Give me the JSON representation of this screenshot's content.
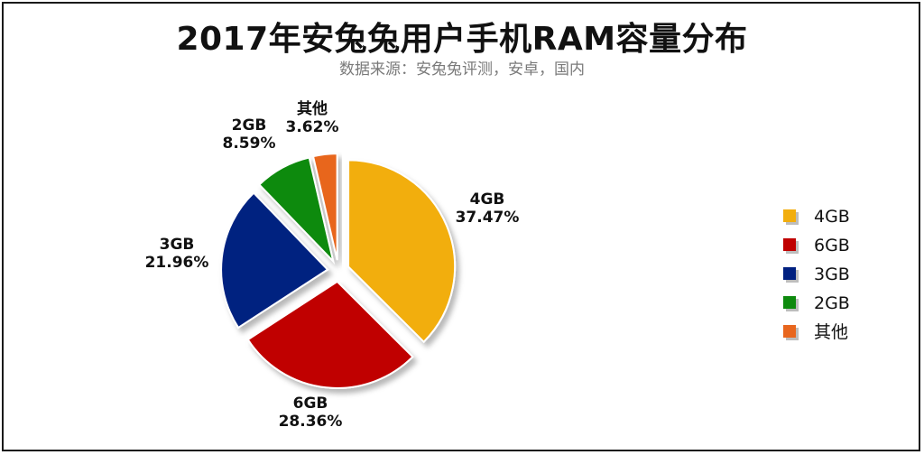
{
  "chart_data": {
    "type": "pie",
    "title": "2017年安兔兔用户手机RAM容量分布",
    "subtitle": "数据来源：安兔兔评测，安卓，国内",
    "slices": [
      {
        "label": "4GB",
        "value": 37.47,
        "value_label": "37.47%",
        "color": "#F2AE0E"
      },
      {
        "label": "6GB",
        "value": 28.36,
        "value_label": "28.36%",
        "color": "#C00000"
      },
      {
        "label": "3GB",
        "value": 21.96,
        "value_label": "21.96%",
        "color": "#002080"
      },
      {
        "label": "2GB",
        "value": 8.59,
        "value_label": "8.59%",
        "color": "#0E8A0E"
      },
      {
        "label": "其他",
        "value": 3.62,
        "value_label": "3.62%",
        "color": "#E8661E"
      }
    ],
    "legend": {
      "position": "right",
      "items": [
        "4GB",
        "6GB",
        "3GB",
        "2GB",
        "其他"
      ]
    },
    "exploded": true
  }
}
